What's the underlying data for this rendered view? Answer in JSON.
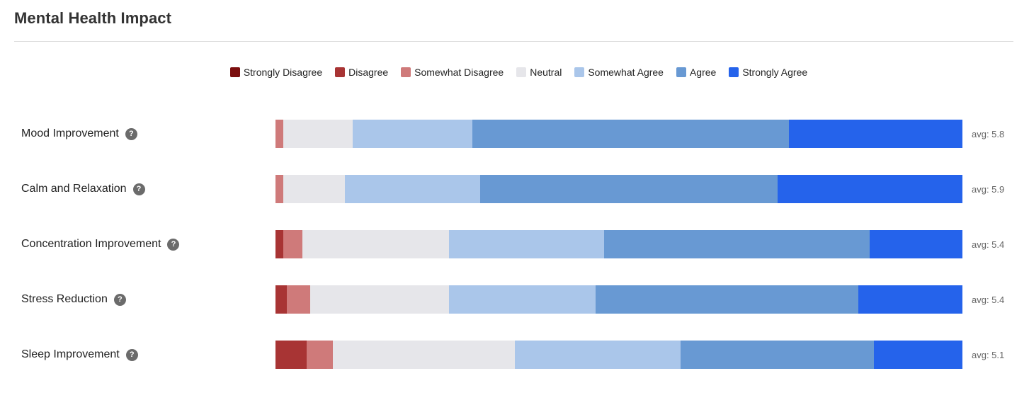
{
  "header": {
    "title": "Mental Health Impact",
    "help_glyph": "?"
  },
  "colors": {
    "Strongly Disagree": "#7b0f0f",
    "Disagree": "#a83434",
    "Somewhat Disagree": "#cf7a7a",
    "Neutral": "#e6e6ea",
    "Somewhat Agree": "#aac6ea",
    "Agree": "#6899d3",
    "Strongly Agree": "#2563eb"
  },
  "chart_data": {
    "type": "bar",
    "orientation": "horizontal",
    "stacked": true,
    "normalized": "percent",
    "title": "Mental Health Impact",
    "legend_position": "top-center",
    "legend": [
      "Strongly Disagree",
      "Disagree",
      "Somewhat Disagree",
      "Neutral",
      "Somewhat Agree",
      "Agree",
      "Strongly Agree"
    ],
    "categories": [
      "Mood Improvement",
      "Calm and Relaxation",
      "Concentration Improvement",
      "Stress Reduction",
      "Sleep Improvement"
    ],
    "avg_labels": [
      "avg: 5.8",
      "avg: 5.9",
      "avg: 5.4",
      "avg: 5.4",
      "avg: 5.1"
    ],
    "series": [
      {
        "name": "Strongly Disagree",
        "values": [
          0.0,
          0.0,
          0.0,
          0.0,
          0.0
        ]
      },
      {
        "name": "Disagree",
        "values": [
          0.0,
          0.0,
          1.1,
          1.7,
          4.5
        ]
      },
      {
        "name": "Somewhat Disagree",
        "values": [
          1.1,
          1.1,
          2.8,
          3.4,
          3.9
        ]
      },
      {
        "name": "Neutral",
        "values": [
          10.1,
          9.0,
          21.4,
          20.2,
          26.4
        ]
      },
      {
        "name": "Somewhat Agree",
        "values": [
          17.5,
          19.7,
          22.5,
          21.3,
          24.2
        ]
      },
      {
        "name": "Agree",
        "values": [
          46.0,
          43.3,
          38.7,
          38.2,
          28.1
        ]
      },
      {
        "name": "Strongly Agree",
        "values": [
          25.3,
          26.9,
          13.5,
          15.2,
          12.9
        ]
      }
    ]
  }
}
